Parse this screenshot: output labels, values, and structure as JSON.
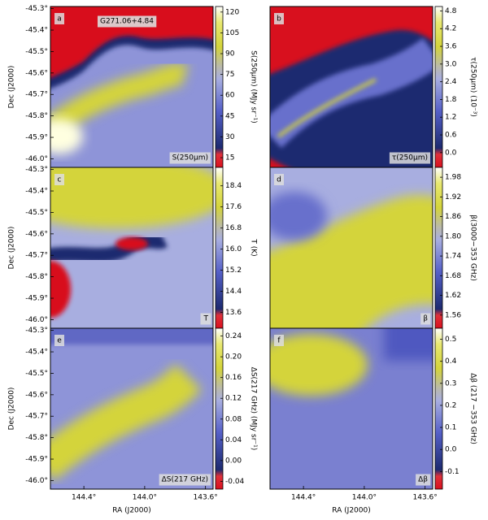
{
  "chart_data": [
    {
      "type": "heatmap",
      "panel": "a",
      "label": "S(250μm)",
      "annotation": "G271.06+4.84",
      "colorbar_label": "S(250μm) (MJy sr⁻¹)",
      "clim": [
        8,
        124
      ],
      "cticks": [
        15,
        30,
        45,
        60,
        75,
        90,
        105,
        120
      ],
      "ylabel": "Dec (J2000)",
      "ylim": [
        -46.04,
        -45.29
      ],
      "yticks": [
        {
          "value": -45.3,
          "label": "-45.3°"
        },
        {
          "value": -45.4,
          "label": "-45.4°"
        },
        {
          "value": -45.5,
          "label": "-45.5°"
        },
        {
          "value": -45.6,
          "label": "-45.6°"
        },
        {
          "value": -45.7,
          "label": "-45.7°"
        },
        {
          "value": -45.8,
          "label": "-45.8°"
        },
        {
          "value": -45.9,
          "label": "-45.9°"
        },
        {
          "value": -46.0,
          "label": "-46.0°"
        }
      ]
    },
    {
      "type": "heatmap",
      "panel": "b",
      "label": "τ(250μm)",
      "colorbar_label": "τ(250μm) (10⁻³)",
      "clim": [
        -0.5,
        4.95
      ],
      "cticks": [
        {
          "value": 0,
          "label": "0.0"
        },
        0.6,
        1.2,
        1.8,
        2.4,
        {
          "value": 3,
          "label": "3.0"
        },
        3.6,
        4.2,
        4.8
      ]
    },
    {
      "type": "heatmap",
      "panel": "c",
      "label": "T",
      "colorbar_label": "T (K)",
      "clim": [
        13.0,
        19.1
      ],
      "cticks": [
        13.6,
        14.4,
        15.2,
        {
          "value": 16,
          "label": "16.0"
        },
        16.8,
        17.6,
        18.4
      ],
      "ylabel": "Dec (J2000)",
      "ylim": [
        -46.04,
        -45.29
      ],
      "yticks": [
        {
          "value": -45.3,
          "label": "-45.3°"
        },
        {
          "value": -45.4,
          "label": "-45.4°"
        },
        {
          "value": -45.5,
          "label": "-45.5°"
        },
        {
          "value": -45.6,
          "label": "-45.6°"
        },
        {
          "value": -45.7,
          "label": "-45.7°"
        },
        {
          "value": -45.8,
          "label": "-45.8°"
        },
        {
          "value": -45.9,
          "label": "-45.9°"
        },
        {
          "value": -46.0,
          "label": "-46.0°"
        }
      ]
    },
    {
      "type": "heatmap",
      "panel": "d",
      "label": "β",
      "colorbar_label": "β(3000−353 GHz)",
      "clim": [
        1.52,
        2.01
      ],
      "cticks": [
        1.56,
        1.62,
        1.68,
        1.74,
        {
          "value": 1.8,
          "label": "1.80"
        },
        1.86,
        1.92,
        1.98
      ]
    },
    {
      "type": "heatmap",
      "panel": "e",
      "label": "ΔS(217 GHz)",
      "colorbar_label": "ΔS(217 GHz) (MJy sr⁻¹)",
      "clim": [
        -0.055,
        0.255
      ],
      "cticks": [
        -0.04,
        {
          "value": 0,
          "label": "0.00"
        },
        0.04,
        0.08,
        0.12,
        0.16,
        {
          "value": 0.2,
          "label": "0.20"
        },
        0.24
      ],
      "ylabel": "Dec (J2000)",
      "ylim": [
        -46.04,
        -45.29
      ],
      "yticks": [
        {
          "value": -45.3,
          "label": "-45.3°"
        },
        {
          "value": -45.4,
          "label": "-45.4°"
        },
        {
          "value": -45.5,
          "label": "-45.5°"
        },
        {
          "value": -45.6,
          "label": "-45.6°"
        },
        {
          "value": -45.7,
          "label": "-45.7°"
        },
        {
          "value": -45.8,
          "label": "-45.8°"
        },
        {
          "value": -45.9,
          "label": "-45.9°"
        },
        {
          "value": -46.0,
          "label": "-46.0°"
        }
      ],
      "xlabel": "RA (J2000)",
      "xlim": [
        144.62,
        143.55
      ],
      "xticks": [
        {
          "value": 144.4,
          "label": "144.4°"
        },
        {
          "value": 144.0,
          "label": "144.0°"
        },
        {
          "value": 143.6,
          "label": "143.6°"
        }
      ]
    },
    {
      "type": "heatmap",
      "panel": "f",
      "label": "Δβ",
      "colorbar_label": "Δβ (217 −353 GHz)",
      "clim": [
        -0.18,
        0.55
      ],
      "cticks": [
        -0.1,
        {
          "value": 0,
          "label": "0.0"
        },
        0.1,
        0.2,
        0.3,
        0.4,
        0.5
      ],
      "xlabel": "RA (J2000)",
      "xlim": [
        144.62,
        143.55
      ],
      "xticks": [
        {
          "value": 144.4,
          "label": "144.4°"
        },
        {
          "value": 144.0,
          "label": "144.0°"
        },
        {
          "value": 143.6,
          "label": "143.6°"
        }
      ]
    }
  ]
}
